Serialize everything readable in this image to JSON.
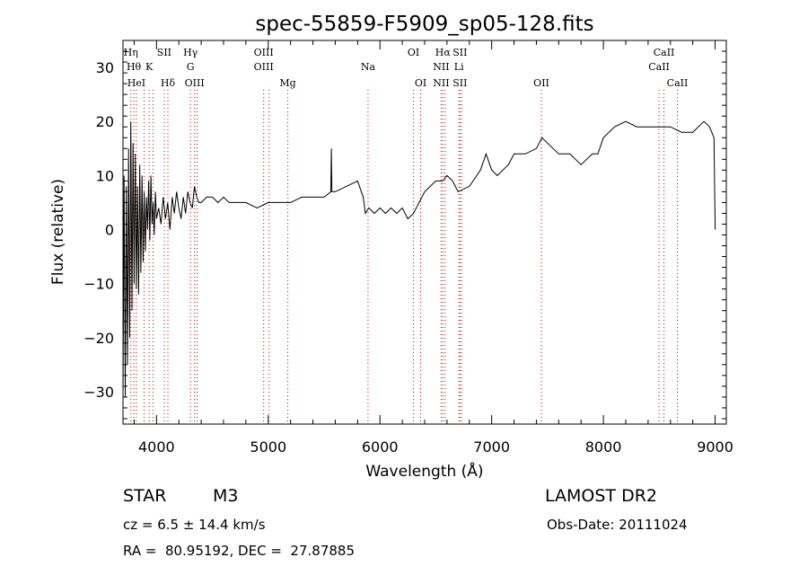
{
  "chart_data": {
    "type": "line",
    "title": "spec-55859-F5909_sp05-128.fits",
    "xlabel": "Wavelength (Å)",
    "ylabel": "Flux (relative)",
    "xlim": [
      3700,
      9100
    ],
    "ylim": [
      -36,
      35
    ],
    "x_ticks": [
      4000,
      5000,
      6000,
      7000,
      8000,
      9000
    ],
    "y_ticks": [
      -30,
      -20,
      -10,
      0,
      10,
      20,
      30
    ],
    "grid": false,
    "line_color": "#000000",
    "marker_color": "#cc0000",
    "series": [
      {
        "x": [
          3700,
          3710,
          3720,
          3730,
          3740,
          3750,
          3760,
          3770,
          3780,
          3790,
          3800,
          3810,
          3820,
          3830,
          3840,
          3850,
          3860,
          3870,
          3880,
          3890,
          3900,
          3910,
          3920,
          3930,
          3940,
          3950,
          3960,
          3970,
          3980,
          3990,
          4000,
          4020,
          4040,
          4060,
          4080,
          4100,
          4120,
          4140,
          4160,
          4180,
          4200,
          4220,
          4240,
          4260,
          4280,
          4300,
          4320,
          4340,
          4360,
          4380,
          4400,
          4450,
          4500,
          4550,
          4600,
          4650,
          4700,
          4800,
          4900,
          5000,
          5100,
          5200,
          5300,
          5400,
          5500,
          5560,
          5565,
          5570,
          5600,
          5700,
          5800,
          5850,
          5870,
          5900,
          5950,
          6000,
          6050,
          6100,
          6150,
          6200,
          6250,
          6300,
          6400,
          6500,
          6560,
          6600,
          6650,
          6700,
          6800,
          6900,
          6950,
          7000,
          7050,
          7100,
          7150,
          7200,
          7300,
          7400,
          7450,
          7500,
          7550,
          7600,
          7650,
          7700,
          7750,
          7800,
          7850,
          7900,
          7950,
          8000,
          8100,
          8200,
          8300,
          8400,
          8500,
          8600,
          8700,
          8800,
          8900,
          8950,
          8990,
          9000
        ],
        "y": [
          -30,
          10,
          -31,
          8,
          -25,
          15,
          -20,
          20,
          -15,
          16,
          -10,
          14,
          -11,
          8,
          -12,
          12,
          -8,
          10,
          -6,
          7,
          -4,
          6,
          0,
          9,
          -2,
          10,
          1,
          5,
          -1,
          7,
          2,
          4,
          1,
          6,
          2,
          5,
          0,
          6,
          3,
          7,
          4,
          2,
          6,
          3,
          7,
          5,
          4,
          8,
          6,
          5,
          5,
          6,
          6,
          5,
          6,
          5,
          5,
          5,
          4,
          5,
          5,
          5,
          6,
          6,
          6,
          7,
          15,
          7,
          7,
          8,
          9,
          6,
          3,
          4,
          3,
          4,
          3,
          4,
          3,
          4,
          2,
          3,
          7,
          9,
          9,
          10,
          9,
          7,
          8,
          11,
          14,
          11,
          10,
          11,
          12,
          14,
          14,
          15,
          17,
          16,
          15,
          14,
          14,
          14,
          13,
          12,
          13,
          14,
          14,
          17,
          19,
          20,
          19,
          19,
          19,
          19,
          18,
          18,
          20,
          19,
          17,
          0
        ]
      }
    ],
    "lines": [
      {
        "x": 3770,
        "labels": [
          {
            "text": "Hη",
            "row": 1
          }
        ]
      },
      {
        "x": 3797,
        "labels": [
          {
            "text": "Hθ",
            "row": 2
          }
        ]
      },
      {
        "x": 3820,
        "labels": [
          {
            "text": "HeI",
            "row": 3
          }
        ]
      },
      {
        "x": 3889,
        "labels": []
      },
      {
        "x": 3934,
        "labels": [
          {
            "text": "K",
            "row": 2
          }
        ]
      },
      {
        "x": 3969,
        "labels": []
      },
      {
        "x": 4069,
        "labels": [
          {
            "text": "SII",
            "row": 1
          }
        ]
      },
      {
        "x": 4102,
        "labels": [
          {
            "text": "Hδ",
            "row": 3
          }
        ]
      },
      {
        "x": 4304,
        "labels": [
          {
            "text": "Hγ",
            "row": 1
          },
          {
            "text": "G",
            "row": 2
          }
        ]
      },
      {
        "x": 4340,
        "labels": [
          {
            "text": "OIII",
            "row": 3
          }
        ]
      },
      {
        "x": 4363,
        "labels": []
      },
      {
        "x": 4959,
        "labels": [
          {
            "text": "OIII",
            "row": 1
          },
          {
            "text": "OIII",
            "row": 2
          }
        ]
      },
      {
        "x": 5007,
        "labels": []
      },
      {
        "x": 5175,
        "labels": [
          {
            "text": "Mg",
            "row": 3
          }
        ]
      },
      {
        "x": 5893,
        "labels": [
          {
            "text": "Na",
            "row": 2
          }
        ]
      },
      {
        "x": 6300,
        "labels": [
          {
            "text": "OI",
            "row": 1
          }
        ]
      },
      {
        "x": 6364,
        "labels": [
          {
            "text": "OI",
            "row": 3
          }
        ]
      },
      {
        "x": 6548,
        "labels": [
          {
            "text": "NII",
            "row": 2
          },
          {
            "text": "NII",
            "row": 3
          }
        ]
      },
      {
        "x": 6563,
        "labels": [
          {
            "text": "Hα",
            "row": 1
          }
        ]
      },
      {
        "x": 6583,
        "labels": []
      },
      {
        "x": 6707,
        "labels": [
          {
            "text": "Li",
            "row": 2
          }
        ]
      },
      {
        "x": 6716,
        "labels": [
          {
            "text": "SII",
            "row": 1
          },
          {
            "text": "SII",
            "row": 3
          }
        ]
      },
      {
        "x": 6731,
        "labels": []
      },
      {
        "x": 7445,
        "labels": [
          {
            "text": "OII",
            "row": 3
          }
        ]
      },
      {
        "x": 8498,
        "labels": [
          {
            "text": "CaII",
            "row": 2
          }
        ]
      },
      {
        "x": 8542,
        "labels": [
          {
            "text": "CaII",
            "row": 1
          }
        ]
      },
      {
        "x": 8662,
        "labels": [
          {
            "text": "CaII",
            "row": 3
          }
        ]
      }
    ]
  },
  "info": {
    "object_type": "STAR",
    "subclass": "M3",
    "survey": "LAMOST DR2",
    "cz": "cz = 6.5 ± 14.4 km/s",
    "obs_date": "Obs-Date: 20111024",
    "coords": "RA =  80.95192, DEC =  27.87885"
  }
}
